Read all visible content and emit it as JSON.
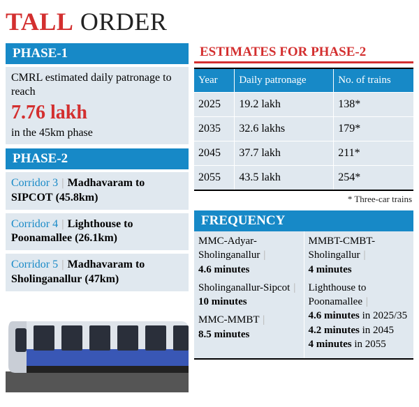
{
  "title_bold": "TALL",
  "title_light": "ORDER",
  "title_bold_color": "#d32f2f",
  "phase1": {
    "label": "PHASE-1",
    "text_pre": "CMRL estimated daily patronage to reach",
    "big": "7.76 lakh",
    "text_post": "in the 45km phase"
  },
  "phase2": {
    "label": "PHASE-2",
    "corridors": [
      {
        "num": "Corridor 3",
        "sep": "|",
        "bold": "Madhavaram to SIPCOT",
        "km": "(45.8km)"
      },
      {
        "num": "Corridor 4",
        "sep": "|",
        "bold": "Lighthouse to Poonamallee",
        "km": "(26.1km)"
      },
      {
        "num": "Corridor 5",
        "sep": "|",
        "bold": "Madhavaram to Sholinganallur",
        "km": "(47km)"
      }
    ]
  },
  "est": {
    "label": "ESTIMATES FOR PHASE-2",
    "cols": [
      "Year",
      "Daily patronage",
      "No. of trains"
    ],
    "rows": [
      [
        "2025",
        "19.2 lakh",
        "138*"
      ],
      [
        "2035",
        "32.6 lakhs",
        "179*"
      ],
      [
        "2045",
        "37.7 lakh",
        "211*"
      ],
      [
        "2055",
        "43.5 lakh",
        "254*"
      ]
    ],
    "note": "* Three-car trains"
  },
  "freq": {
    "label": "FREQUENCY",
    "left": [
      {
        "route": "MMC-Adyar-Sholinganallur",
        "time": "4.6 minutes"
      },
      {
        "route": "Sholinganallur-Sipcot",
        "time": "10 minutes"
      },
      {
        "route": "MMC-MMBT",
        "time": "8.5 minutes"
      }
    ],
    "right": [
      {
        "route": "MMBT-CMBT-Sholingallur",
        "time": "4 minutes"
      },
      {
        "route": "Lighthouse to Poonamallee",
        "time": "4.6 minutes",
        "suf": "in 2025/35",
        "time2": "4.2 minutes",
        "suf2": "in 2045",
        "time3": "4 minutes",
        "suf3": "in 2055"
      }
    ]
  }
}
